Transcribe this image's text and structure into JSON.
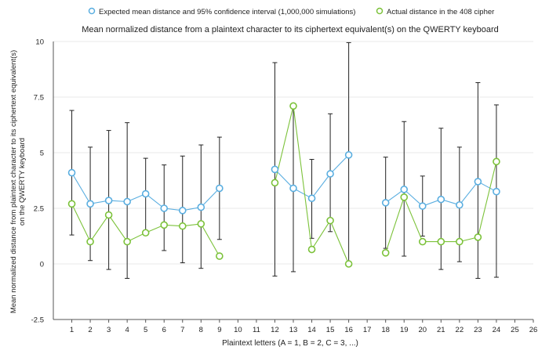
{
  "chart_data": {
    "type": "line",
    "title": "Mean normalized distance from a plaintext character to its ciphertext equivalent(s) on the QWERTY keyboard",
    "xlabel": "Plaintext letters (A = 1, B = 2, C = 3, ...)",
    "ylabel_line1": "Mean normalized distance from plaintext character to its ciphertext equivalent(s)",
    "ylabel_line2": "on the QWERTY keyboard",
    "xlim": [
      0,
      26
    ],
    "ylim": [
      -2.5,
      10
    ],
    "x_ticks": [
      "1",
      "2",
      "3",
      "4",
      "5",
      "6",
      "7",
      "8",
      "9",
      "10",
      "11",
      "12",
      "13",
      "14",
      "15",
      "16",
      "17",
      "18",
      "19",
      "20",
      "21",
      "22",
      "23",
      "24",
      "25",
      "26"
    ],
    "y_ticks": [
      "-2.5",
      "0",
      "2.5",
      "5",
      "7.5",
      "10"
    ],
    "y_tick_values": [
      -2.5,
      0,
      2.5,
      5,
      7.5,
      10
    ],
    "grid": true,
    "legend_position": "top",
    "x": [
      1,
      2,
      3,
      4,
      5,
      6,
      7,
      8,
      9,
      10,
      11,
      12,
      13,
      14,
      15,
      16,
      17,
      18,
      19,
      20,
      21,
      22,
      23,
      24,
      25,
      26
    ],
    "series": [
      {
        "name": "Expected mean distance and 95% confidence interval (1,000,000 simulations)",
        "color": "#5aaee0",
        "values": [
          4.1,
          2.7,
          2.85,
          2.8,
          3.15,
          2.5,
          2.4,
          2.55,
          3.4,
          null,
          null,
          4.25,
          3.4,
          2.95,
          4.05,
          4.9,
          null,
          2.75,
          3.35,
          2.6,
          2.9,
          2.65,
          3.7,
          3.25,
          null,
          null
        ],
        "ci_low": [
          1.3,
          0.15,
          -0.25,
          -0.65,
          1.4,
          0.6,
          0.05,
          -0.2,
          1.1,
          null,
          null,
          -0.55,
          -0.35,
          1.15,
          1.45,
          0,
          null,
          0.7,
          0.35,
          1.25,
          -0.25,
          0.1,
          -0.65,
          -0.6,
          null,
          null
        ],
        "ci_high": [
          6.9,
          5.25,
          6.0,
          6.35,
          4.75,
          4.45,
          4.85,
          5.35,
          5.7,
          null,
          null,
          9.05,
          7.15,
          4.7,
          6.75,
          9.95,
          null,
          4.8,
          6.4,
          3.95,
          6.1,
          5.25,
          8.15,
          7.15,
          null,
          null
        ]
      },
      {
        "name": "Actual distance in the 408 cipher",
        "color": "#7cc23a",
        "values": [
          2.7,
          1.0,
          2.2,
          1.0,
          1.4,
          1.75,
          1.7,
          1.8,
          0.35,
          null,
          null,
          3.65,
          7.1,
          0.65,
          1.95,
          0.0,
          null,
          0.5,
          3.0,
          1.0,
          1.0,
          1.0,
          1.2,
          4.6,
          null,
          null
        ]
      }
    ]
  }
}
